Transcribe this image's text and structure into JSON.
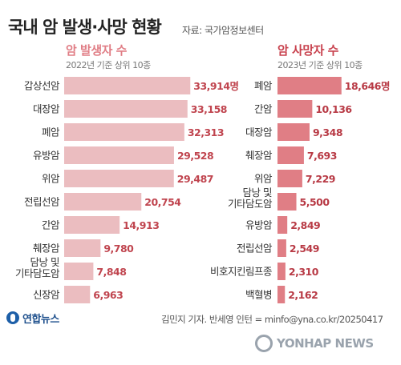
{
  "header": {
    "title": "국내 암 발생·사망 현황",
    "source": "자료: 국가암정보센터"
  },
  "footer": {
    "logo_text": "연합뉴스",
    "credit": "김민지 기자. 반세영 인턴 = minfo@yna.co.kr/20250417",
    "watermark": "YONHAP NEWS"
  },
  "colors": {
    "incidence_bar": "#ebbdc0",
    "mortality_bar": "#e07e85",
    "incidence_title": "#e07d85",
    "mortality_title": "#c8414d",
    "incidence_value": "#c0454f",
    "mortality_value": "#b83a45"
  },
  "chart_data": [
    {
      "type": "bar",
      "orientation": "horizontal",
      "title": "암 발생자 수",
      "subtitle": "2022년 기준 상위 10종",
      "categories": [
        "갑상선암",
        "대장암",
        "폐암",
        "유방암",
        "위암",
        "전립선암",
        "간암",
        "췌장암",
        "담낭 및\n기타담도암",
        "신장암"
      ],
      "values": [
        33914,
        33158,
        32313,
        29528,
        29487,
        20754,
        14913,
        9780,
        7848,
        6963
      ],
      "value_labels": [
        "33,914명",
        "33,158",
        "32,313",
        "29,528",
        "29,487",
        "20,754",
        "14,913",
        "9,780",
        "7,848",
        "6,963"
      ],
      "xlim": [
        0,
        34500
      ],
      "grid": false
    },
    {
      "type": "bar",
      "orientation": "horizontal",
      "title": "암 사망자 수",
      "subtitle": "2023년 기준 상위 10종",
      "categories": [
        "폐암",
        "간암",
        "대장암",
        "췌장암",
        "위암",
        "담낭 및\n기타담도암",
        "유방암",
        "전립선암",
        "비호지킨림프종",
        "백혈병"
      ],
      "values": [
        18646,
        10136,
        9348,
        7693,
        7229,
        5500,
        2849,
        2549,
        2310,
        2162
      ],
      "value_labels": [
        "18,646명",
        "10,136",
        "9,348",
        "7,693",
        "7,229",
        "5,500",
        "2,849",
        "2,549",
        "2,310",
        "2,162"
      ],
      "xlim": [
        0,
        18700
      ],
      "grid": false
    }
  ]
}
